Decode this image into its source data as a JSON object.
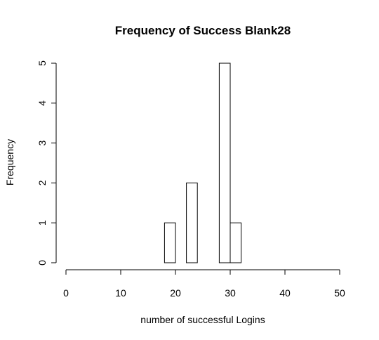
{
  "chart_data": {
    "type": "bar",
    "title": "Frequency of Success Blank28",
    "xlabel": "number of successful Logins",
    "ylabel": "Frequency",
    "xlim": [
      0,
      50
    ],
    "ylim": [
      0,
      5
    ],
    "x_ticks": [
      0,
      10,
      20,
      30,
      40,
      50
    ],
    "y_ticks": [
      0,
      1,
      2,
      3,
      4,
      5
    ],
    "bin_width": 2,
    "bins": [
      {
        "start": 18,
        "end": 20,
        "count": 1
      },
      {
        "start": 20,
        "end": 22,
        "count": 0
      },
      {
        "start": 22,
        "end": 24,
        "count": 2
      },
      {
        "start": 24,
        "end": 26,
        "count": 0
      },
      {
        "start": 26,
        "end": 28,
        "count": 0
      },
      {
        "start": 28,
        "end": 30,
        "count": 5
      },
      {
        "start": 30,
        "end": 32,
        "count": 1
      }
    ],
    "grid": false,
    "legend": "none",
    "bar_fill": "#ffffff",
    "bar_stroke": "#000000"
  }
}
